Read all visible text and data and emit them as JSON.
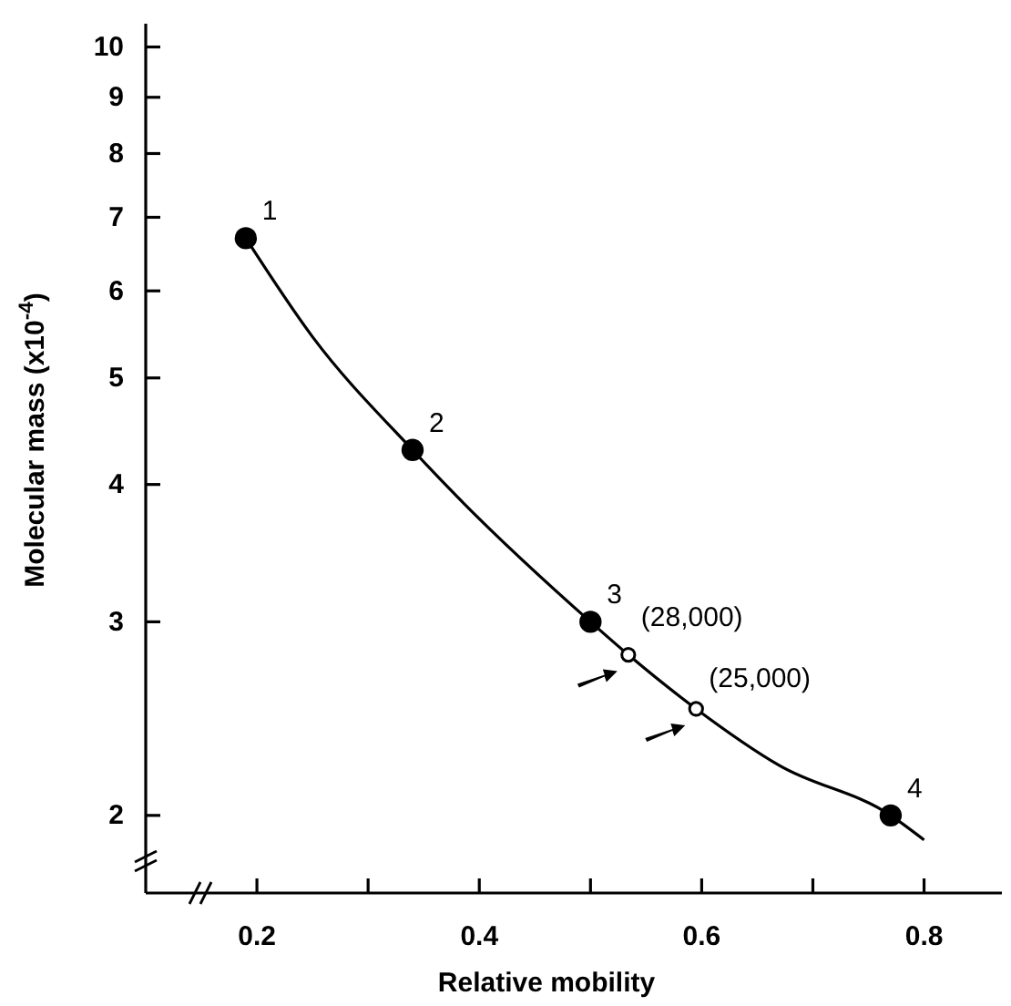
{
  "chart_data": {
    "type": "line",
    "xlabel": "Relative mobility",
    "ylabel": "Molecular mass (x10$^{-4}$)",
    "log": "y",
    "xlim": [
      0.1,
      0.87
    ],
    "ylim": [
      1.7,
      10.5
    ],
    "xticks": [
      0.2,
      {
        "value": 0.3,
        "label": null
      },
      0.4,
      {
        "value": 0.5,
        "label": null
      },
      0.6,
      {
        "value": 0.7,
        "label": null
      },
      0.8
    ],
    "yticks": [
      2,
      3,
      4,
      5,
      6,
      7,
      8,
      9,
      10
    ],
    "grid": false,
    "series": [
      {
        "color": "#000000",
        "marker": "none",
        "line_style": "solid",
        "x": [
          0.19,
          0.25,
          0.34,
          0.38,
          0.5,
          0.534,
          0.595,
          0.67,
          0.77,
          0.8
        ],
        "values": [
          6.7,
          5.45,
          4.3,
          3.9,
          3.0,
          2.8,
          2.5,
          2.22,
          2.0,
          1.9
        ]
      },
      {
        "type": "scatter",
        "color": "#000000",
        "marker": "circle",
        "x": [
          0.19,
          0.34,
          0.5,
          0.77
        ],
        "values": [
          6.7,
          4.3,
          3.0,
          2.0
        ]
      },
      {
        "type": "scatter",
        "color": "#ffffff",
        "marker": "circle",
        "x": [
          0.534,
          0.595
        ],
        "values": [
          2.8,
          2.5
        ]
      }
    ],
    "annotations": [
      {
        "text": "1",
        "x": 0.19,
        "y": 6.7
      },
      {
        "text": "2",
        "x": 0.34,
        "y": 4.3
      },
      {
        "text": "3",
        "x": 0.5,
        "y": 3.0
      },
      {
        "text": "4",
        "x": 0.77,
        "y": 2.0
      },
      {
        "text": "(28,000)",
        "x": 0.534,
        "y": 2.8
      },
      {
        "text": "(25,000)",
        "x": 0.595,
        "y": 2.5
      }
    ]
  }
}
